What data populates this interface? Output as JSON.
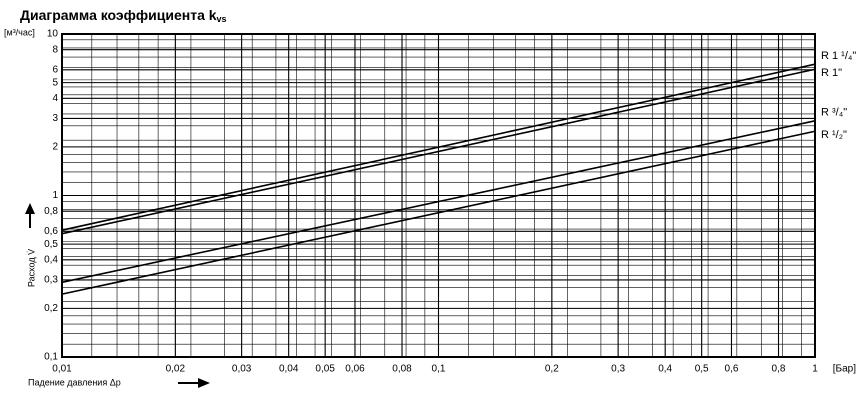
{
  "chart_data": {
    "type": "line",
    "title": "Диаграмма коэффициента k",
    "title_subscript": "vs",
    "y_unit": "[м³/час]",
    "y_label": "Расход V̇",
    "x_label": "Падение давления Δp",
    "x_unit": "[Бар]",
    "log_x": true,
    "log_y": true,
    "grid": true,
    "minor_grid": true,
    "x": [
      0.01,
      1
    ],
    "series": [
      {
        "name": "R 1 ¹/₄\"",
        "color": "#000000",
        "values": [
          0.61,
          6.5
        ]
      },
      {
        "name": "R 1\"",
        "color": "#000000",
        "values": [
          0.58,
          6.05
        ]
      },
      {
        "name": "R ³/₄\"",
        "color": "#000000",
        "values": [
          0.29,
          2.9
        ]
      },
      {
        "name": "R ¹/₂\"",
        "color": "#000000",
        "values": [
          0.245,
          2.5
        ]
      }
    ],
    "xlim": [
      0.01,
      1
    ],
    "xticks": [
      {
        "value": 0.01,
        "label": "0,01"
      },
      {
        "value": 0.02,
        "label": "0,02"
      },
      {
        "value": 0.03,
        "label": "0,03"
      },
      {
        "value": 0.04,
        "label": "0,04"
      },
      {
        "value": 0.05,
        "label": "0,05"
      },
      {
        "value": 0.06,
        "label": "0,06"
      },
      {
        "value": 0.08,
        "label": "0,08"
      },
      {
        "value": 0.1,
        "label": "0,1"
      },
      {
        "value": 0.2,
        "label": "0,2"
      },
      {
        "value": 0.3,
        "label": "0,3"
      },
      {
        "value": 0.4,
        "label": "0,4"
      },
      {
        "value": 0.5,
        "label": "0,5"
      },
      {
        "value": 0.6,
        "label": "0,6"
      },
      {
        "value": 0.8,
        "label": "0,8"
      },
      1
    ],
    "ylim": [
      0.1,
      10
    ],
    "yticks": [
      {
        "value": 0.1,
        "label": "0,1"
      },
      {
        "value": 0.2,
        "label": "0,2"
      },
      {
        "value": 0.3,
        "label": "0,3"
      },
      {
        "value": 0.4,
        "label": "0,4"
      },
      {
        "value": 0.5,
        "label": "0,5"
      },
      {
        "value": 0.6,
        "label": "0,6"
      },
      {
        "value": 0.8,
        "label": "0,8"
      },
      1,
      2,
      3,
      4,
      5,
      6,
      8,
      10
    ]
  }
}
